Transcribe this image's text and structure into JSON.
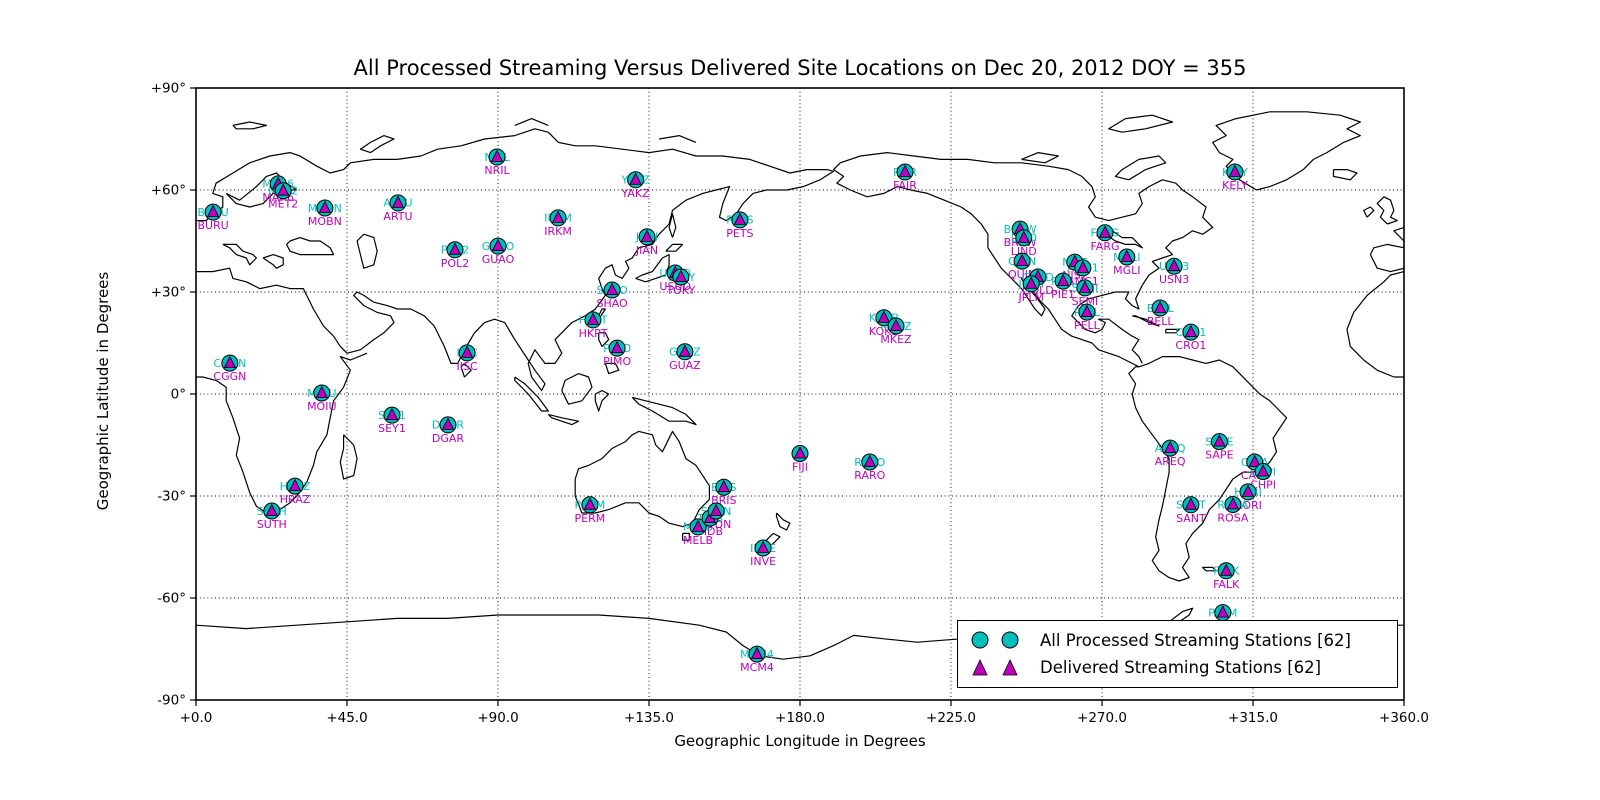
{
  "title": "All Processed Streaming Versus Delivered Site Locations on Dec 20, 2012 DOY = 355",
  "axes": {
    "xlabel": "Geographic Longitude in Degrees",
    "ylabel": "Geographic Latitude in Degrees",
    "xticks": [
      "+0.0",
      "+45.0",
      "+90.0",
      "+135.0",
      "+180.0",
      "+225.0",
      "+270.0",
      "+315.0",
      "+360.0"
    ],
    "yticks": [
      "+90°",
      "+60°",
      "+30°",
      "0°",
      "-30°",
      "-60°",
      "-90°"
    ],
    "xlim": [
      0,
      360
    ],
    "ylim": [
      -90,
      90
    ],
    "grid": "dotted"
  },
  "legend": {
    "position": "lower right",
    "items": [
      {
        "marker": "circle",
        "color": "#00BFBF",
        "label": "All Processed Streaming Stations [62]"
      },
      {
        "marker": "triangle",
        "color": "#BF00BF",
        "label": "Delivered Streaming Stations [62]"
      }
    ]
  },
  "colors": {
    "processed": "#00BFBF",
    "delivered": "#BF00BF",
    "coastline": "#000000",
    "background": "#FFFFFF"
  },
  "chart_data": {
    "type": "scatter",
    "title": "All Processed Streaming Versus Delivered Site Locations on Dec 20, 2012 DOY = 355",
    "xlabel": "Geographic Longitude in Degrees",
    "ylabel": "Geographic Latitude in Degrees",
    "xlim": [
      0,
      360
    ],
    "ylim": [
      -90,
      90
    ],
    "legend_position": "lower right",
    "series": [
      {
        "name": "All Processed Streaming Stations",
        "count": 62,
        "marker": "circle",
        "color": "#00BFBF"
      },
      {
        "name": "Delivered Streaming Stations",
        "count": 62,
        "marker": "triangle",
        "color": "#BF00BF"
      }
    ],
    "stations": [
      {
        "id": "BURU",
        "lon": 5.1,
        "lat": 53.5
      },
      {
        "id": "MAR6",
        "lon": 24.5,
        "lat": 61.8
      },
      {
        "id": "MET2",
        "lon": 26.0,
        "lat": 59.8
      },
      {
        "id": "MOBN",
        "lon": 38.4,
        "lat": 54.7
      },
      {
        "id": "ARTU",
        "lon": 60.2,
        "lat": 56.2
      },
      {
        "id": "NRIL",
        "lon": 89.7,
        "lat": 69.7
      },
      {
        "id": "POL2",
        "lon": 77.2,
        "lat": 42.4
      },
      {
        "id": "GUAO",
        "lon": 90.0,
        "lat": 43.5
      },
      {
        "id": "IRKM",
        "lon": 107.9,
        "lat": 51.8
      },
      {
        "id": "YAKZ",
        "lon": 131.0,
        "lat": 63.0
      },
      {
        "id": "JIAN",
        "lon": 134.4,
        "lat": 46.2
      },
      {
        "id": "SHAO",
        "lon": 124.0,
        "lat": 30.6
      },
      {
        "id": "USUD",
        "lon": 142.8,
        "lat": 35.6
      },
      {
        "id": "TOKY",
        "lon": 144.5,
        "lat": 34.4
      },
      {
        "id": "PETS",
        "lon": 162.1,
        "lat": 51.2
      },
      {
        "id": "HKPT",
        "lon": 118.3,
        "lat": 21.8
      },
      {
        "id": "PIMO",
        "lon": 125.5,
        "lat": 13.5
      },
      {
        "id": "GUAZ",
        "lon": 145.7,
        "lat": 12.4
      },
      {
        "id": "IISC",
        "lon": 80.8,
        "lat": 12.1
      },
      {
        "id": "CGGN",
        "lon": 10.1,
        "lat": 9.1
      },
      {
        "id": "MOIU",
        "lon": 37.5,
        "lat": 0.3
      },
      {
        "id": "SEY1",
        "lon": 58.4,
        "lat": -6.2
      },
      {
        "id": "DGAR",
        "lon": 75.1,
        "lat": -9.1
      },
      {
        "id": "HRAZ",
        "lon": 29.5,
        "lat": -27.1
      },
      {
        "id": "SUTH",
        "lon": 22.6,
        "lat": -34.4
      },
      {
        "id": "PERM",
        "lon": 117.4,
        "lat": -32.6
      },
      {
        "id": "MELB",
        "lon": 149.6,
        "lat": -39.1
      },
      {
        "id": "TIDB",
        "lon": 153.2,
        "lat": -36.5
      },
      {
        "id": "SYDN",
        "lon": 155.0,
        "lat": -34.4
      },
      {
        "id": "BRIS",
        "lon": 157.3,
        "lat": -27.4
      },
      {
        "id": "INVE",
        "lon": 169.0,
        "lat": -45.3
      },
      {
        "id": "FIJI",
        "lon": 180.0,
        "lat": -17.5
      },
      {
        "id": "RARO",
        "lon": 200.8,
        "lat": -20.0
      },
      {
        "id": "MCM4",
        "lon": 167.2,
        "lat": -76.5
      },
      {
        "id": "KOKB",
        "lon": 205.0,
        "lat": 22.4
      },
      {
        "id": "MKEZ",
        "lon": 208.6,
        "lat": 20.0
      },
      {
        "id": "FAIR",
        "lon": 211.3,
        "lat": 65.3
      },
      {
        "id": "KELY",
        "lon": 309.6,
        "lat": 65.3
      },
      {
        "id": "BREW",
        "lon": 245.6,
        "lat": 48.5
      },
      {
        "id": "LIND",
        "lon": 246.7,
        "lat": 45.9
      },
      {
        "id": "QUIN",
        "lon": 246.2,
        "lat": 39.1
      },
      {
        "id": "GOLD",
        "lon": 250.9,
        "lat": 34.4
      },
      {
        "id": "JPLM",
        "lon": 248.9,
        "lat": 32.4
      },
      {
        "id": "PIE1",
        "lon": 258.4,
        "lat": 33.2
      },
      {
        "id": "NIST",
        "lon": 261.9,
        "lat": 38.8
      },
      {
        "id": "AMC1",
        "lon": 264.3,
        "lat": 37.1
      },
      {
        "id": "SEMI",
        "lon": 264.9,
        "lat": 31.2
      },
      {
        "id": "FARG",
        "lon": 270.9,
        "lat": 47.4
      },
      {
        "id": "MGLI",
        "lon": 277.4,
        "lat": 40.3
      },
      {
        "id": "USN3",
        "lon": 291.5,
        "lat": 37.6
      },
      {
        "id": "BELL",
        "lon": 287.3,
        "lat": 25.3
      },
      {
        "id": "PELL",
        "lon": 265.5,
        "lat": 24.1
      },
      {
        "id": "CRO1",
        "lon": 296.5,
        "lat": 18.2
      },
      {
        "id": "AREQ",
        "lon": 290.3,
        "lat": -15.9
      },
      {
        "id": "SAPE",
        "lon": 305.0,
        "lat": -14.0
      },
      {
        "id": "CATA",
        "lon": 315.5,
        "lat": -20.0
      },
      {
        "id": "CHPI",
        "lon": 318.0,
        "lat": -22.8
      },
      {
        "id": "HORI",
        "lon": 313.5,
        "lat": -28.8
      },
      {
        "id": "SANT",
        "lon": 296.5,
        "lat": -32.6
      },
      {
        "id": "ROSA",
        "lon": 309.0,
        "lat": -32.5
      },
      {
        "id": "FALK",
        "lon": 307.0,
        "lat": -52.0
      },
      {
        "id": "PALM",
        "lon": 306.0,
        "lat": -64.3
      }
    ]
  }
}
